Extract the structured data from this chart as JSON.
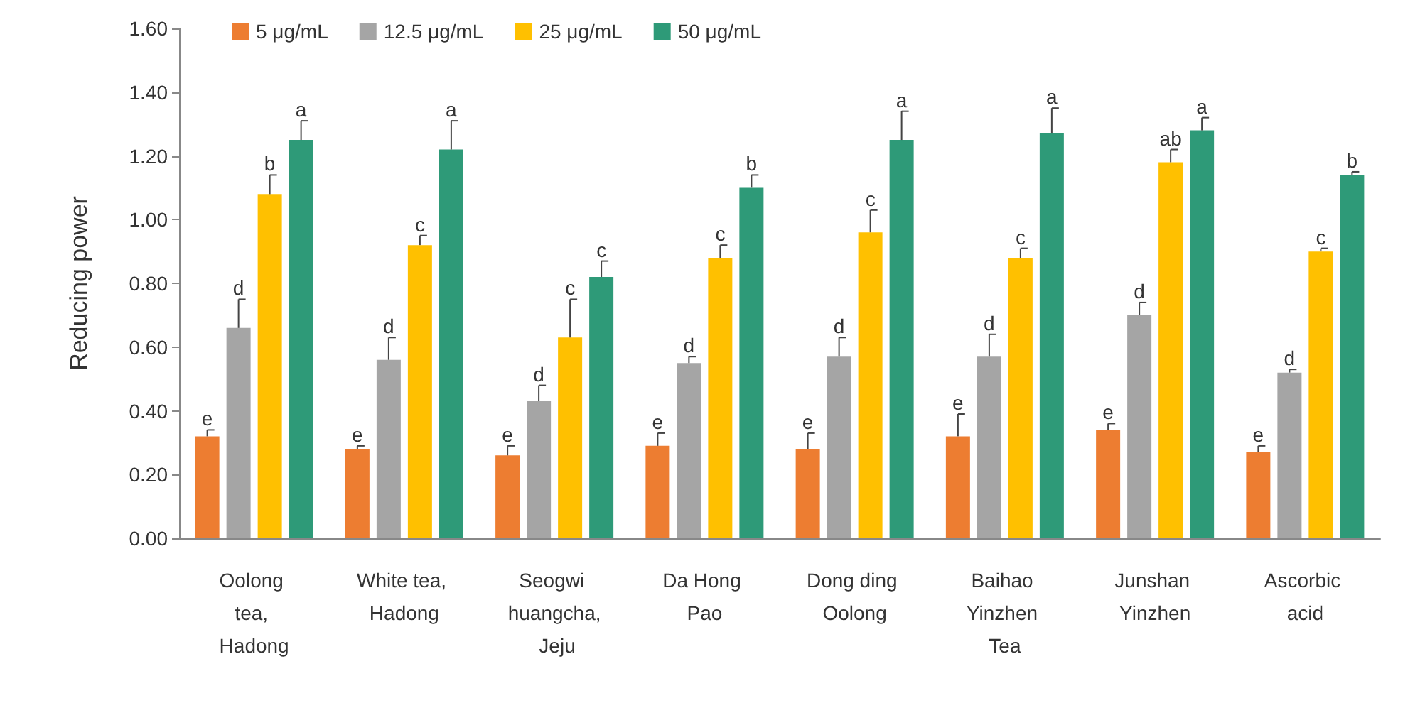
{
  "chart_data": {
    "type": "bar",
    "ylabel": "Reducing power",
    "categories": [
      "Oolong tea, Hadong",
      "White tea, Hadong",
      "Seogwi huangcha, Jeju",
      "Da Hong Pao",
      "Dong ding Oolong",
      "Baihao Yinzhen Tea",
      "Junshan Yinzhen",
      "Ascorbic acid"
    ],
    "series": [
      {
        "name": "5 μg/mL",
        "color": "#ed7d31",
        "values": [
          0.32,
          0.28,
          0.26,
          0.29,
          0.28,
          0.32,
          0.34,
          0.27
        ],
        "errors": [
          0.02,
          0.01,
          0.03,
          0.04,
          0.05,
          0.07,
          0.02,
          0.02
        ],
        "value_labels": [
          "e",
          "e",
          "e",
          "e",
          "e",
          "e",
          "e",
          "e"
        ]
      },
      {
        "name": "12.5 μg/mL",
        "color": "#a5a5a5",
        "values": [
          0.66,
          0.56,
          0.43,
          0.55,
          0.57,
          0.57,
          0.7,
          0.52
        ],
        "errors": [
          0.09,
          0.07,
          0.05,
          0.02,
          0.06,
          0.07,
          0.04,
          0.01
        ],
        "value_labels": [
          "d",
          "d",
          "d",
          "d",
          "d",
          "d",
          "d",
          "d"
        ]
      },
      {
        "name": "25 μg/mL",
        "color": "#ffc000",
        "values": [
          1.08,
          0.92,
          0.63,
          0.88,
          0.96,
          0.88,
          1.18,
          0.9
        ],
        "errors": [
          0.06,
          0.03,
          0.12,
          0.04,
          0.07,
          0.03,
          0.04,
          0.01
        ],
        "value_labels": [
          "b",
          "c",
          "c",
          "c",
          "c",
          "c",
          "ab",
          "c"
        ]
      },
      {
        "name": "50 μg/mL",
        "color": "#2e9a78",
        "values": [
          1.25,
          1.22,
          0.82,
          1.1,
          1.25,
          1.27,
          1.28,
          1.14
        ],
        "errors": [
          0.06,
          0.09,
          0.05,
          0.04,
          0.09,
          0.08,
          0.04,
          0.01
        ],
        "value_labels": [
          "a",
          "a",
          "c",
          "b",
          "a",
          "a",
          "a",
          "b"
        ]
      }
    ],
    "ylim": [
      0,
      1.6
    ],
    "yticks": [
      {
        "value": 0,
        "label": "0.00"
      },
      {
        "value": 0.2,
        "label": "0.20"
      },
      {
        "value": 0.4,
        "label": "0.40"
      },
      {
        "value": 0.6,
        "label": "0.60"
      },
      {
        "value": 0.8,
        "label": "0.80"
      },
      {
        "value": 1.0,
        "label": "1.00"
      },
      {
        "value": 1.2,
        "label": "1.20"
      },
      {
        "value": 1.4,
        "label": "1.40"
      },
      {
        "value": 1.6,
        "label": "1.60"
      }
    ],
    "grid": false,
    "legend": "top"
  }
}
